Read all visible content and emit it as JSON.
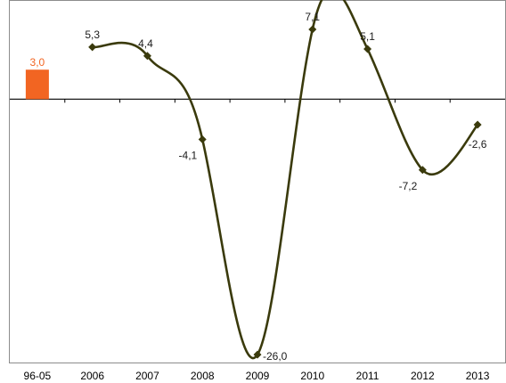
{
  "chart_data": {
    "type": "line",
    "categories": [
      "96-05",
      "2006",
      "2007",
      "2008",
      "2009",
      "2010",
      "2011",
      "2012",
      "2013"
    ],
    "bar": {
      "category": "96-05",
      "value": 3.0,
      "label": "3,0",
      "color": "#f26522"
    },
    "series": [
      {
        "x": [
          "2006",
          "2007",
          "2008",
          "2009",
          "2010",
          "2011",
          "2012",
          "2013"
        ],
        "values": [
          5.3,
          4.4,
          -4.1,
          -26.0,
          7.1,
          5.1,
          -7.2,
          -2.6
        ],
        "labels": [
          "5,3",
          "4,4",
          "-4,1",
          "-26,0",
          "7,1",
          "5,1",
          "-7,2",
          "-2,6"
        ],
        "color": "#3a3a0c"
      }
    ],
    "ylim": [
      -26.8,
      10
    ],
    "grid": false,
    "legend": "none"
  }
}
